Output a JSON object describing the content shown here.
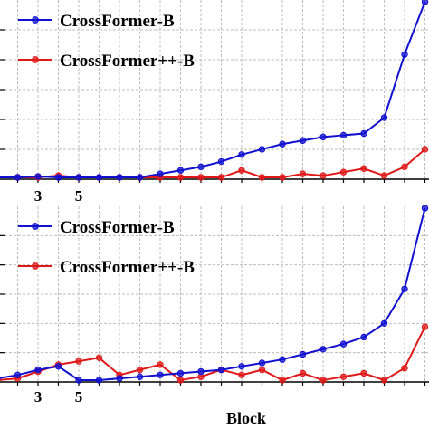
{
  "chart_data": [
    {
      "type": "line",
      "x": [
        1,
        2,
        3,
        4,
        5,
        6,
        7,
        8,
        9,
        10,
        11,
        12,
        13,
        14,
        15,
        16,
        17,
        18,
        19,
        20,
        21,
        22
      ],
      "x_ticks_shown": [
        "3",
        "5"
      ],
      "xlabel": "",
      "ylabel": "",
      "ylim": [
        0,
        1
      ],
      "grid": true,
      "legend_position": "top-left",
      "series": [
        {
          "name": "CrossFormer-B",
          "color": "#1010d0",
          "values": [
            0.0,
            0.0,
            0.005,
            0.0,
            0.0,
            0.0,
            0.0,
            0.0,
            0.02,
            0.04,
            0.06,
            0.09,
            0.13,
            0.16,
            0.19,
            0.21,
            0.23,
            0.24,
            0.25,
            0.34,
            0.7,
            1.0
          ]
        },
        {
          "name": "CrossFormer++-B",
          "color": "#e01818",
          "values": [
            0.0,
            0.0,
            0.0,
            0.01,
            0.0,
            0.0,
            0.0,
            0.0,
            0.0,
            0.0,
            0.0,
            0.0,
            0.04,
            0.0,
            0.0,
            0.02,
            0.01,
            0.03,
            0.05,
            0.01,
            0.06,
            0.16
          ]
        }
      ]
    },
    {
      "type": "line",
      "x": [
        1,
        2,
        3,
        4,
        5,
        6,
        7,
        8,
        9,
        10,
        11,
        12,
        13,
        14,
        15,
        16,
        17,
        18,
        19,
        20,
        21,
        22
      ],
      "x_ticks_shown": [
        "3",
        "5"
      ],
      "xlabel": "Block",
      "ylabel": "",
      "ylim": [
        0,
        1
      ],
      "grid": true,
      "legend_position": "top-left",
      "series": [
        {
          "name": "CrossFormer-B",
          "color": "#1010d0",
          "values": [
            0.01,
            0.03,
            0.06,
            0.08,
            0.0,
            0.0,
            0.01,
            0.02,
            0.03,
            0.04,
            0.05,
            0.06,
            0.08,
            0.1,
            0.12,
            0.15,
            0.18,
            0.21,
            0.25,
            0.33,
            0.53,
            1.0
          ]
        },
        {
          "name": "CrossFormer++-B",
          "color": "#e01818",
          "values": [
            0.0,
            0.01,
            0.05,
            0.09,
            0.11,
            0.13,
            0.03,
            0.06,
            0.09,
            0.0,
            0.02,
            0.06,
            0.03,
            0.06,
            0.0,
            0.04,
            0.0,
            0.02,
            0.04,
            0.0,
            0.07,
            0.31
          ]
        }
      ]
    }
  ]
}
